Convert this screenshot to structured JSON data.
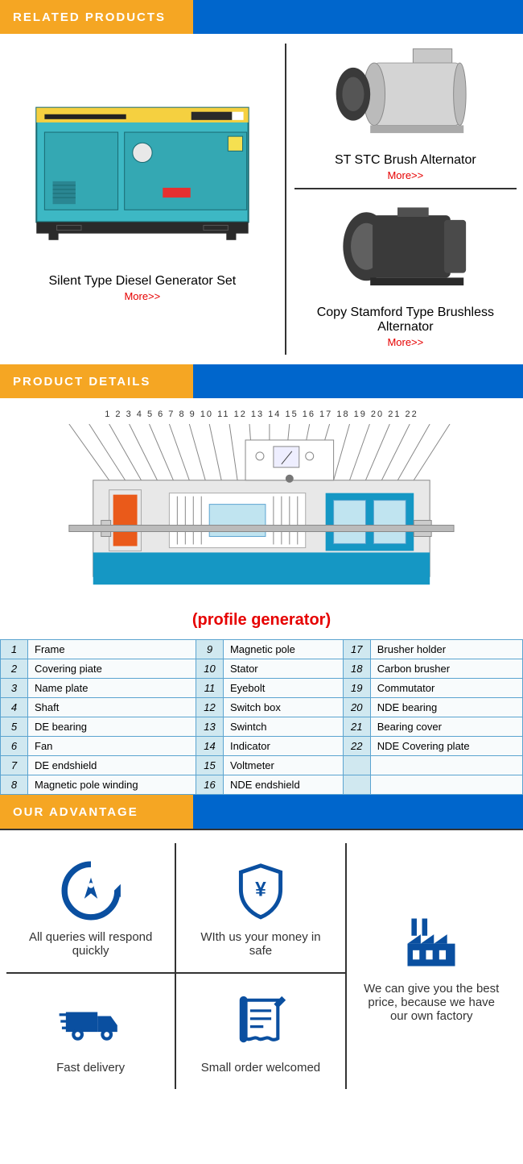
{
  "colors": {
    "accent_orange": "#f5a623",
    "accent_blue": "#0066cc",
    "brand_blue": "#0a4fa0",
    "teal": "#3db8c4",
    "link_red": "#e60000",
    "border_dark": "#333333",
    "table_border": "#5ba4d0",
    "table_num_bg": "#d0e8f0"
  },
  "sections": {
    "related": "RELATED PRODUCTS",
    "details": "PRODUCT DETAILS",
    "advantage": "OUR ADVANTAGE"
  },
  "products": [
    {
      "title": "Silent Type Diesel Generator Set",
      "more": "More>>"
    },
    {
      "title": "ST STC Brush Alternator",
      "more": "More>>"
    },
    {
      "title": "Copy Stamford Type Brushless Alternator",
      "more": "More>>"
    }
  ],
  "diagram": {
    "numbers": "1 2 3 4 5 6 7 8 9 10 11 12 13 14 15 16 17 18 19 20 21 22",
    "caption": "(profile generator)"
  },
  "parts": [
    [
      "1",
      "Frame",
      "9",
      "Magnetic pole",
      "17",
      "Brusher holder"
    ],
    [
      "2",
      "Covering piate",
      "10",
      "Stator",
      "18",
      "Carbon brusher"
    ],
    [
      "3",
      "Name plate",
      "11",
      "Eyebolt",
      "19",
      "Commutator"
    ],
    [
      "4",
      "Shaft",
      "12",
      "Switch box",
      "20",
      "NDE bearing"
    ],
    [
      "5",
      "DE bearing",
      "13",
      "Swintch",
      "21",
      "Bearing cover"
    ],
    [
      "6",
      "Fan",
      "14",
      "Indicator",
      "22",
      "NDE Covering plate"
    ],
    [
      "7",
      "DE endshield",
      "15",
      "Voltmeter",
      "",
      ""
    ],
    [
      "8",
      "Magnetic pole winding",
      "16",
      "NDE endshield",
      "",
      ""
    ]
  ],
  "advantages": [
    {
      "icon": "rocket",
      "text": "All queries will respond quickly"
    },
    {
      "icon": "shield",
      "text": "WIth us your money in safe"
    },
    {
      "icon": "factory",
      "text": "We can give you the best price, because we have our own factory"
    },
    {
      "icon": "truck",
      "text": "Fast delivery"
    },
    {
      "icon": "note",
      "text": "Small order welcomed"
    }
  ]
}
